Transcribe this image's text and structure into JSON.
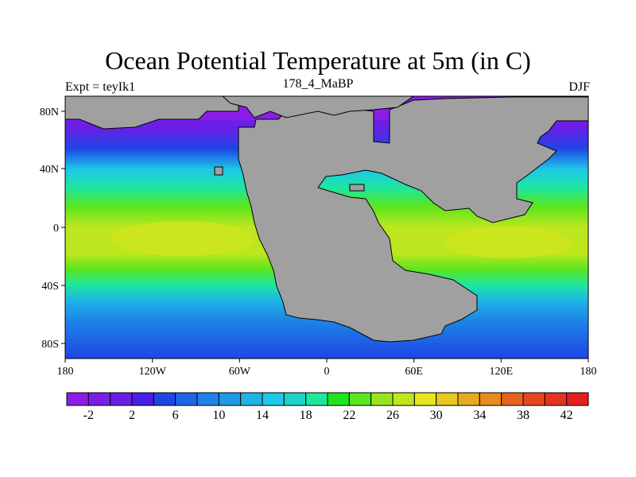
{
  "title": "Ocean Potential Temperature at 5m (in C)",
  "experiment_label": "Expt = teyIk1",
  "center_subtitle": "178_4_MaBP",
  "season": "DJF",
  "map": {
    "x_ticks": [
      "180",
      "120W",
      "60W",
      "0",
      "60E",
      "120E",
      "180"
    ],
    "y_ticks": [
      "80N",
      "40N",
      "0",
      "40S",
      "80S"
    ],
    "land_color": "#a0a0a0"
  },
  "colorbar": {
    "labels": [
      "-2",
      "2",
      "6",
      "10",
      "14",
      "18",
      "22",
      "26",
      "30",
      "34",
      "38",
      "42"
    ],
    "colors": [
      "#8a1ee6",
      "#7d1ee6",
      "#6a1ee6",
      "#4a1ee6",
      "#1e46e6",
      "#1e64e6",
      "#1e82e6",
      "#1e9ae6",
      "#1eb4e6",
      "#1ec8e6",
      "#1ed2c8",
      "#1ee6a0",
      "#1ee61e",
      "#5ae61e",
      "#96e61e",
      "#bee61e",
      "#e6e61e",
      "#e6c81e",
      "#e6aa1e",
      "#e68c1e",
      "#e6641e",
      "#e6461e",
      "#e6321e",
      "#e61e1e"
    ]
  }
}
